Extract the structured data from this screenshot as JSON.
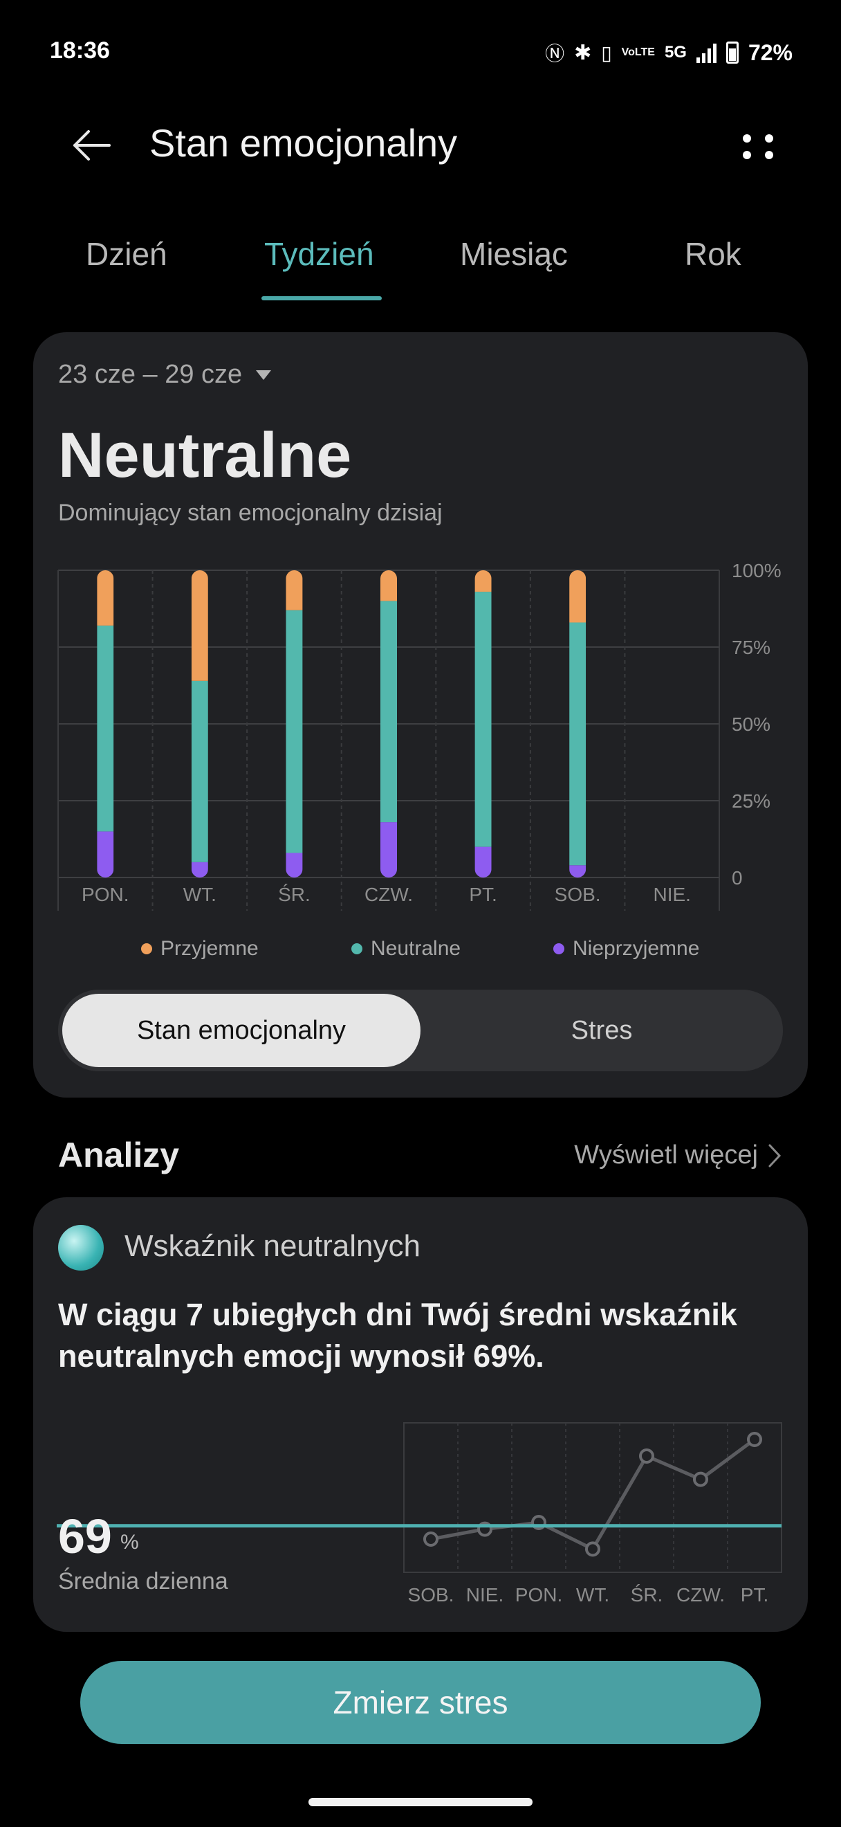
{
  "status": {
    "time": "18:36",
    "battery": "72%",
    "network": "5G",
    "volte": "VoLTE"
  },
  "header": {
    "title": "Stan emocjonalny",
    "back_icon": "arrow-left-icon",
    "more_icon": "more-dots-icon"
  },
  "tabs": [
    {
      "label": "Dzień",
      "active": false
    },
    {
      "label": "Tydzień",
      "active": true
    },
    {
      "label": "Miesiąc",
      "active": false
    },
    {
      "label": "Rok",
      "active": false
    }
  ],
  "summary": {
    "date_range": "23 cze – 29 cze",
    "state": "Neutralne",
    "subtitle": "Dominujący stan emocjonalny dzisiaj"
  },
  "chart_data": {
    "type": "bar",
    "stacked": true,
    "categories": [
      "PON.",
      "WT.",
      "ŚR.",
      "CZW.",
      "PT.",
      "SOB.",
      "NIE."
    ],
    "series": [
      {
        "name": "Nieprzyjemne",
        "color": "#8e5cf0",
        "values": [
          15,
          5,
          8,
          18,
          10,
          4,
          0
        ]
      },
      {
        "name": "Neutralne",
        "color": "#53b8ad",
        "values": [
          67,
          59,
          79,
          72,
          83,
          79,
          0
        ]
      },
      {
        "name": "Przyjemne",
        "color": "#f0a05b",
        "values": [
          18,
          36,
          13,
          10,
          7,
          17,
          0
        ]
      }
    ],
    "y_ticks": [
      "0",
      "25%",
      "50%",
      "75%",
      "100%"
    ],
    "ylim": [
      0,
      100
    ],
    "grid": true
  },
  "legend": [
    {
      "label": "Przyjemne",
      "color": "#f0a05b"
    },
    {
      "label": "Neutralne",
      "color": "#53b8ad"
    },
    {
      "label": "Nieprzyjemne",
      "color": "#8e5cf0"
    }
  ],
  "toggle": {
    "active": "Stan emocjonalny",
    "inactive": "Stres"
  },
  "analysis": {
    "section_title": "Analizy",
    "view_more": "Wyświetl więcej",
    "card_title": "Wskaźnik neutralnych",
    "text": "W ciągu 7 ubiegłych dni Twój średni wskaźnik neutralnych emocji wynosił 69%.",
    "value": "69",
    "unit": "%",
    "value_label": "Średnia dzienna",
    "mini_chart": {
      "type": "line",
      "categories": [
        "SOB.",
        "NIE.",
        "PON.",
        "WT.",
        "ŚR.",
        "CZW.",
        "PT."
      ],
      "values": [
        65,
        68,
        70,
        62,
        90,
        83,
        95
      ],
      "average": 69,
      "ylim": [
        55,
        100
      ]
    }
  },
  "primary_button": {
    "label": "Zmierz stres"
  }
}
